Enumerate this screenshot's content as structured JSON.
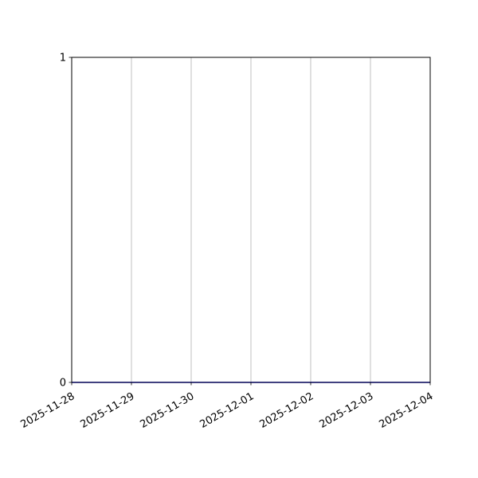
{
  "chart_data": {
    "type": "line",
    "title": "",
    "xlabel": "",
    "ylabel": "",
    "x_ticks": [
      "2025-11-28",
      "2025-11-29",
      "2025-11-30",
      "2025-12-01",
      "2025-12-02",
      "2025-12-03",
      "2025-12-04"
    ],
    "y_ticks": [
      "0",
      "1"
    ],
    "xlim": [
      "2025-11-28",
      "2025-12-04"
    ],
    "ylim": [
      0,
      1
    ],
    "grid": "vertical",
    "series": [
      {
        "x": [
          "2025-11-28",
          "2025-11-29",
          "2025-11-30",
          "2025-12-01",
          "2025-12-02",
          "2025-12-03",
          "2025-12-04"
        ],
        "y": [
          0,
          0,
          0,
          0,
          0,
          0,
          0
        ],
        "color": "#0000ff"
      }
    ],
    "colors": {
      "grid": "#b0b0b0",
      "axis": "#000000"
    }
  }
}
